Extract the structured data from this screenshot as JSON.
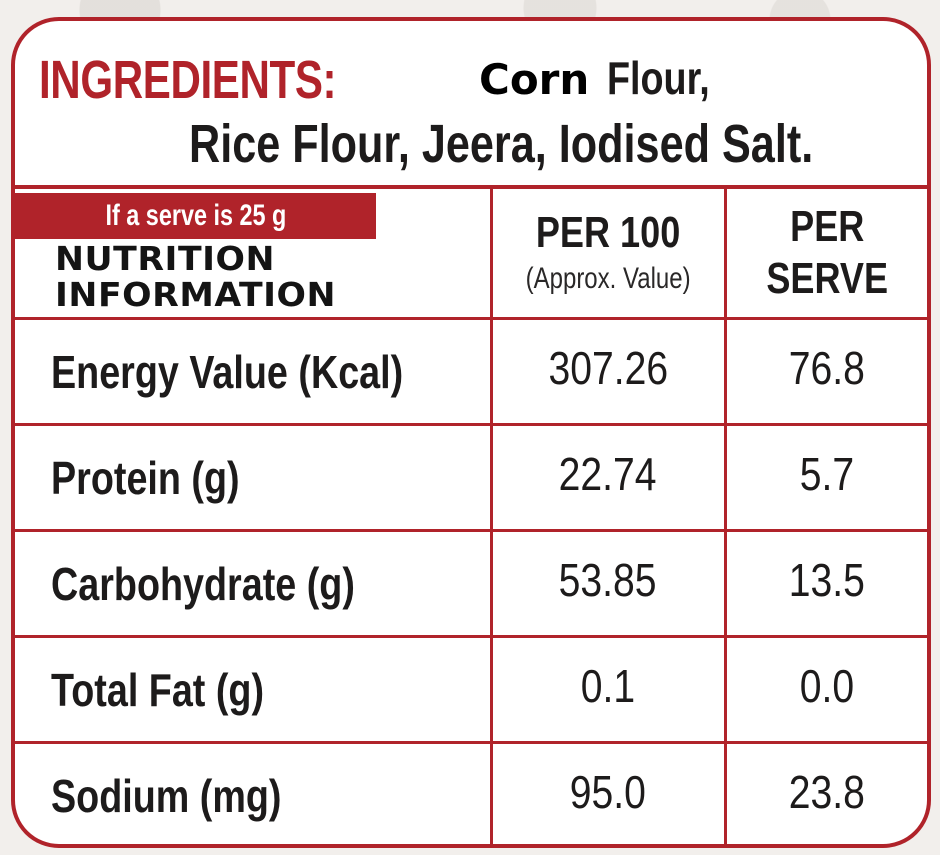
{
  "ingredients": {
    "heading": "INGREDIENTS:",
    "line1_first_word": "Corn",
    "line1_rest": "Flour,",
    "line2": "Rice Flour, Jeera, Iodised Salt."
  },
  "nutrition": {
    "serve_note": "If a serve is 25 g",
    "title_line1": "NUTRITION",
    "title_line2": "INFORMATION",
    "columns": {
      "per100_title": "PER 100",
      "per100_sub": "(Approx. Value)",
      "perserve_line1": "PER",
      "perserve_line2": "SERVE"
    },
    "rows": [
      {
        "nutrient": "Energy Value (Kcal)",
        "per100": "307.26",
        "per_serve": "76.8"
      },
      {
        "nutrient": "Protein (g)",
        "per100": "22.74",
        "per_serve": "5.7"
      },
      {
        "nutrient": "Carbohydrate (g)",
        "per100": "53.85",
        "per_serve": "13.5"
      },
      {
        "nutrient": "Total Fat (g)",
        "per100": "0.1",
        "per_serve": "0.0"
      },
      {
        "nutrient": "Sodium (mg)",
        "per100": "95.0",
        "per_serve": "23.8"
      }
    ]
  },
  "colors": {
    "accent_red": "#b0232a",
    "text_dark": "#1d1b1b",
    "background": "#ffffff"
  }
}
